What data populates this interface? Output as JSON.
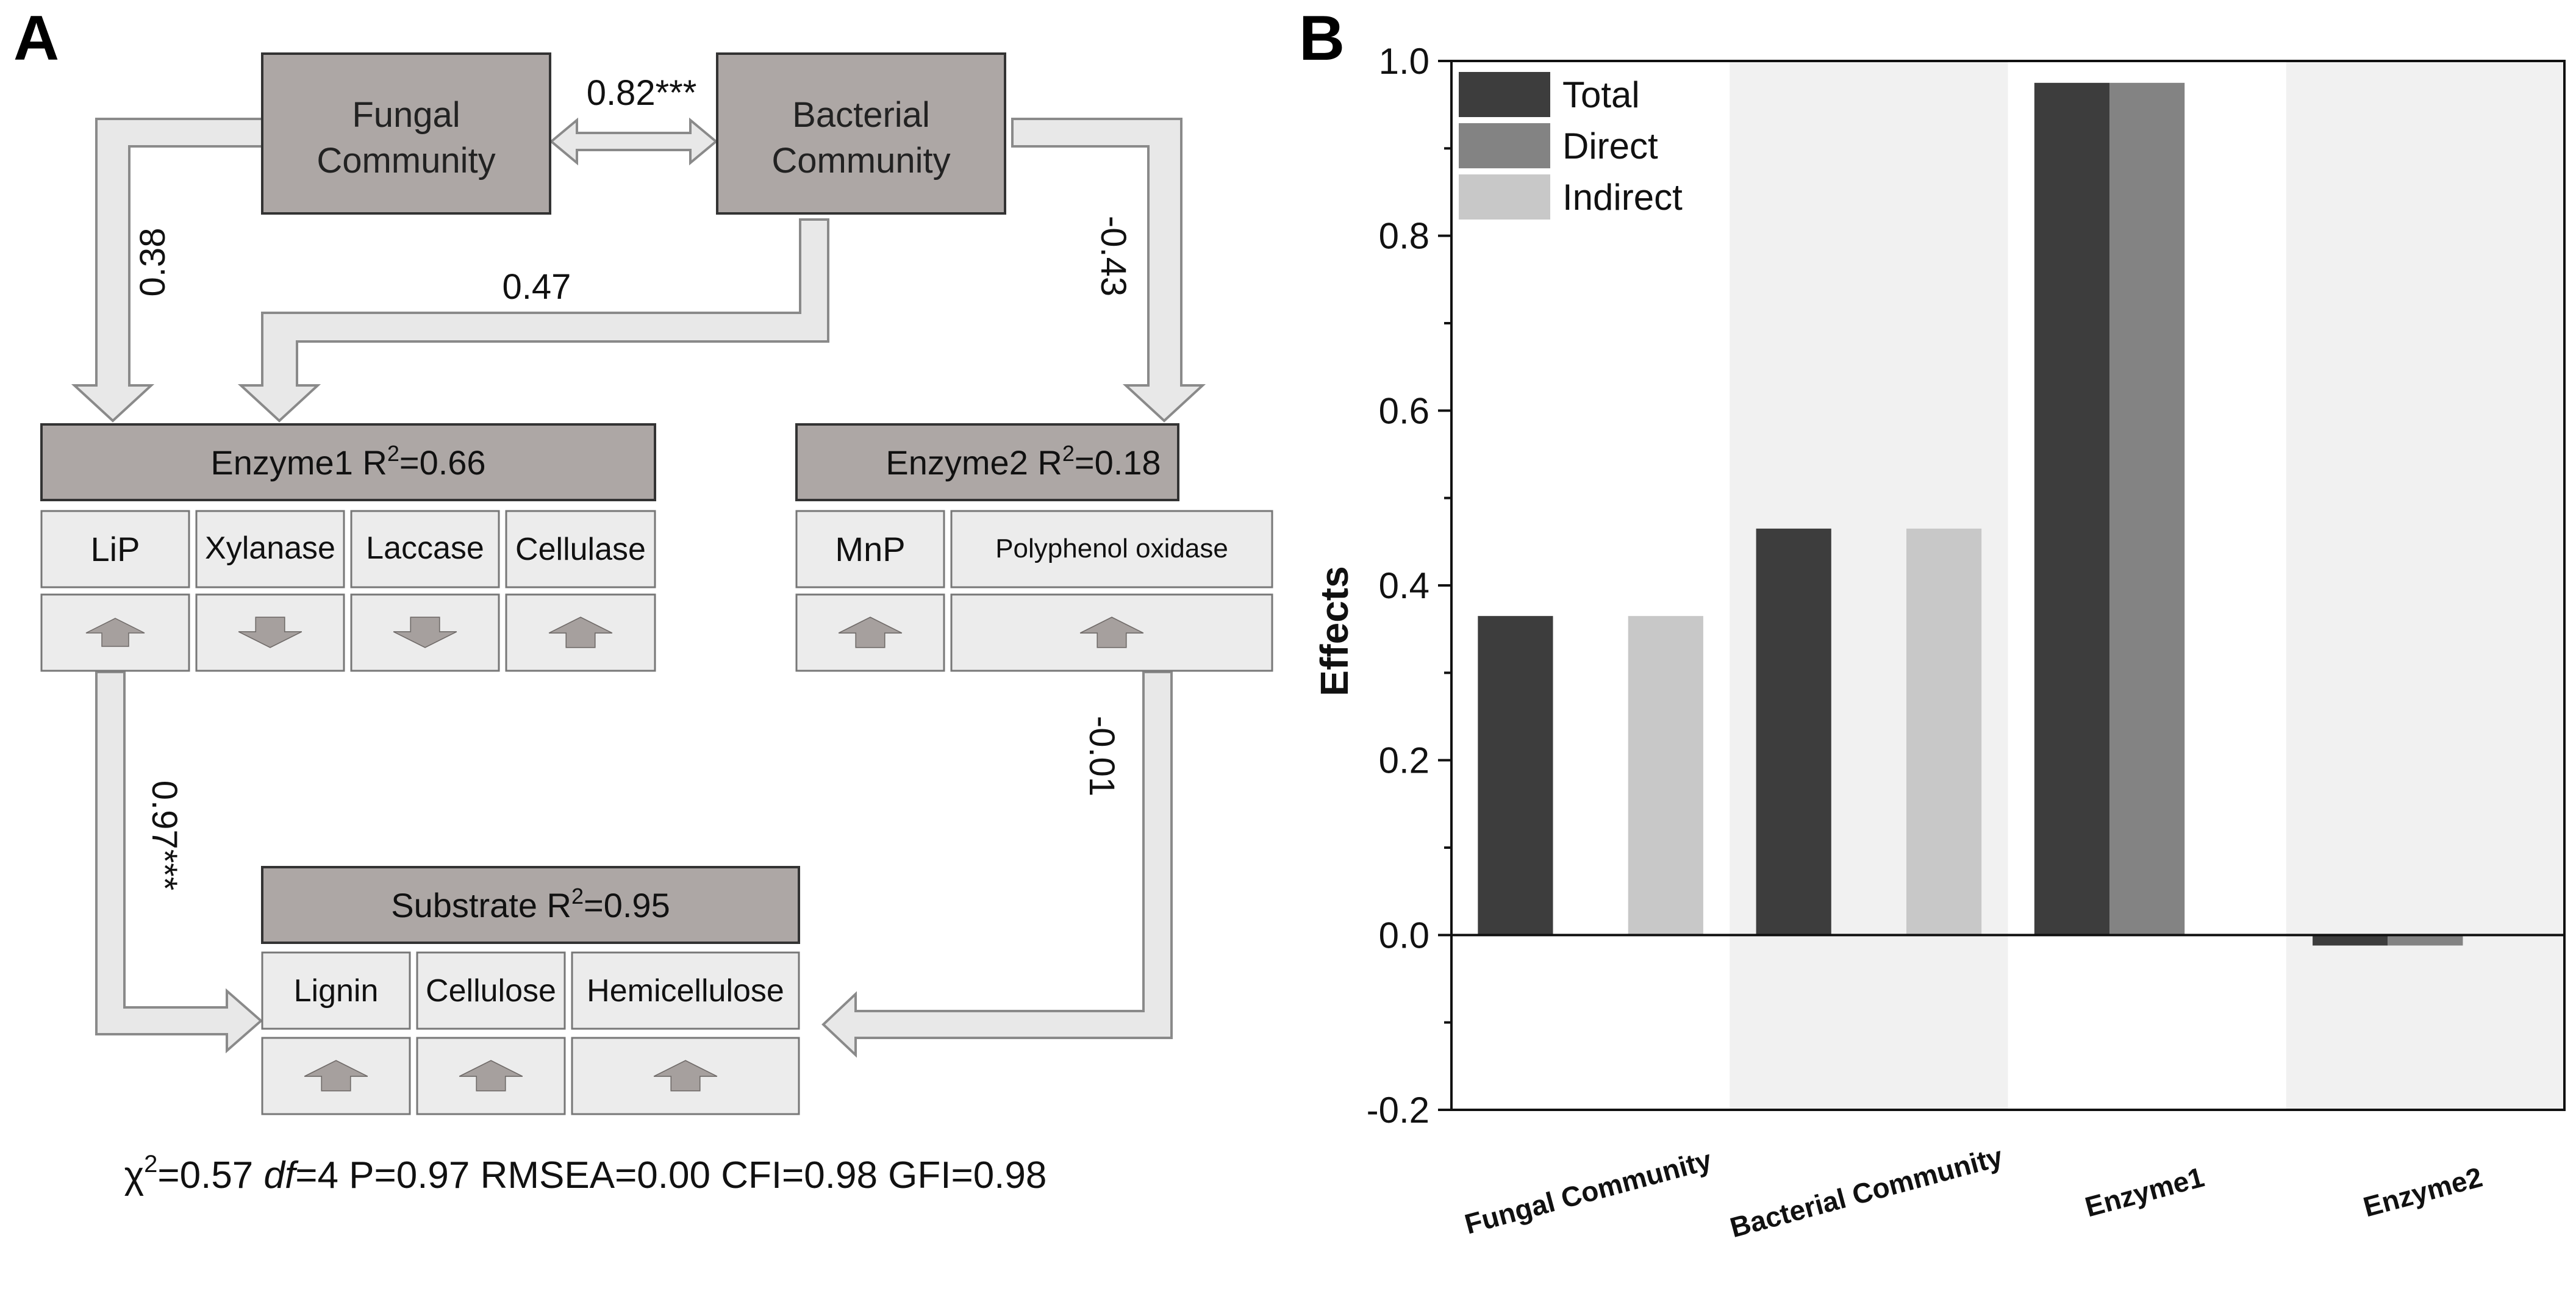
{
  "panel_a": {
    "label": "A",
    "fungal": {
      "line1": "Fungal",
      "line2": "Community"
    },
    "bacterial": {
      "line1": "Bacterial",
      "line2": "Community"
    },
    "paths": {
      "fungal_bacterial": "0.82***",
      "fungal_enzyme1": "0.38",
      "bacterial_enzyme1": "0.47",
      "bacterial_enzyme2": "-0.43",
      "enzyme1_substrate": "0.97***",
      "enzyme2_substrate": "-0.01"
    },
    "enzyme1": {
      "title": "Enzyme1 R",
      "sup": "2",
      "value": "=0.66",
      "items": [
        {
          "label": "LiP",
          "direction": "up"
        },
        {
          "label": "Xylanase",
          "direction": "down"
        },
        {
          "label": "Laccase",
          "direction": "down"
        },
        {
          "label": "Cellulase",
          "direction": "up"
        }
      ]
    },
    "enzyme2": {
      "title": "Enzyme2 R",
      "sup": "2",
      "value": "=0.18",
      "items": [
        {
          "label": "MnP",
          "direction": "up"
        },
        {
          "label": "Polyphenol oxidase",
          "direction": "up"
        }
      ]
    },
    "substrate": {
      "title": "Substrate R",
      "sup": "2",
      "value": "=0.95",
      "items": [
        {
          "label": "Lignin",
          "direction": "up"
        },
        {
          "label": "Cellulose",
          "direction": "up"
        },
        {
          "label": "Hemicellulose",
          "direction": "up"
        }
      ]
    },
    "fit": {
      "chi": "χ",
      "chi_sup": "2",
      "chi_val": "=0.57 ",
      "df_label": "df",
      "rest": "=4 P=0.97 RMSEA=0.00 CFI=0.98 GFI=0.98"
    }
  },
  "chart_data": {
    "type": "bar",
    "panel_label": "B",
    "ylabel": "Effects",
    "ylim": [
      -0.2,
      1.0
    ],
    "yticks": [
      "-0.2",
      "0.0",
      "0.2",
      "0.4",
      "0.6",
      "0.8",
      "1.0"
    ],
    "categories": [
      "Fungal Community",
      "Bacterial Community",
      "Enzyme1",
      "Enzyme2"
    ],
    "series": [
      {
        "name": "Total",
        "color": "#3d3d3d",
        "values": [
          0.365,
          0.465,
          0.975,
          -0.012
        ]
      },
      {
        "name": "Direct",
        "color": "#838383",
        "values": [
          0,
          0,
          0.975,
          -0.012
        ]
      },
      {
        "name": "Indirect",
        "color": "#c8c8c8",
        "values": [
          0.365,
          0.465,
          0,
          0
        ]
      }
    ],
    "legend_position": "top-left",
    "colors": {
      "band": "#f1f1f1"
    }
  }
}
